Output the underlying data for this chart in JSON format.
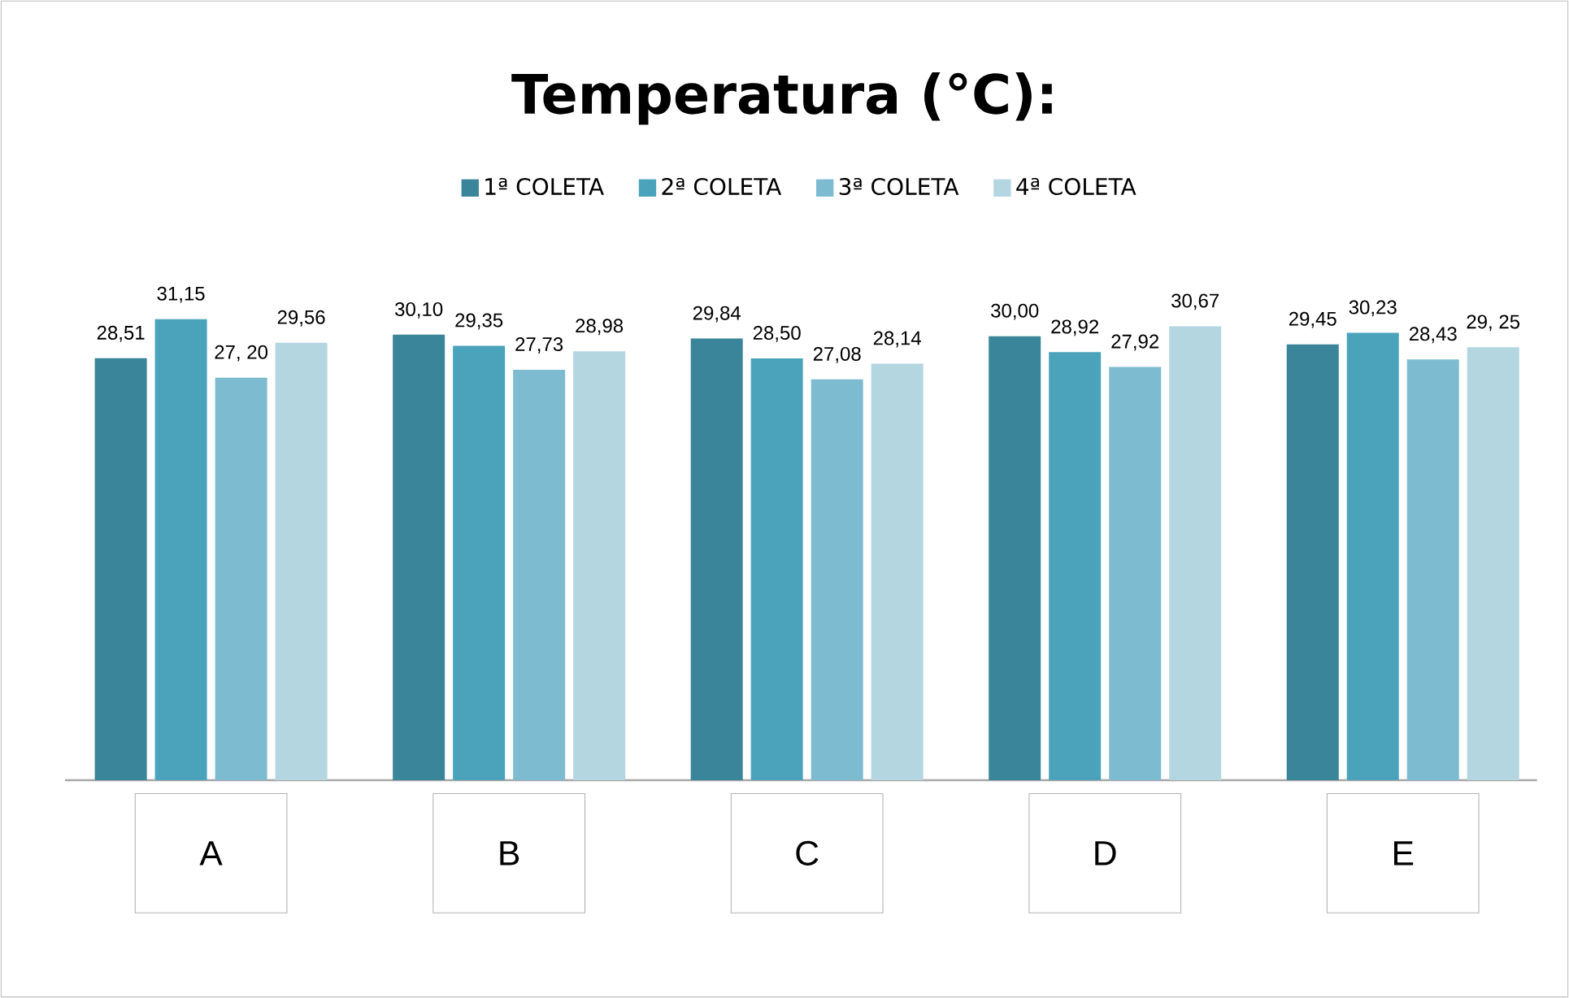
{
  "chart_data": {
    "type": "bar",
    "title": "Temperatura (°C):",
    "categories": [
      "A",
      "B",
      "C",
      "D",
      "E"
    ],
    "series": [
      {
        "name": "1ª COLETA",
        "color": "#3a8599",
        "values": [
          28.51,
          30.1,
          29.84,
          30.0,
          29.45
        ],
        "value_labels": [
          "28,51",
          "30,10",
          "29,84",
          "30,00",
          "29,45"
        ]
      },
      {
        "name": "2ª COLETA",
        "color": "#4aa3bb",
        "values": [
          31.15,
          29.35,
          28.5,
          28.92,
          30.23
        ],
        "value_labels": [
          "31,15",
          "29,35",
          "28,50",
          "28,92",
          "30,23"
        ]
      },
      {
        "name": "3ª COLETA",
        "color": "#7dbcd0",
        "values": [
          27.2,
          27.73,
          27.08,
          27.92,
          28.43
        ],
        "value_labels": [
          "27, 20",
          "27,73",
          "27,08",
          "27,92",
          "28,43"
        ]
      },
      {
        "name": "4ª COLETA",
        "color": "#b3d6e1",
        "values": [
          29.56,
          28.98,
          28.14,
          30.67,
          29.25
        ],
        "value_labels": [
          "29,56",
          "28,98",
          "28,14",
          "30,67",
          "29, 25"
        ]
      }
    ],
    "tick_labels": "x",
    "legend": "top"
  }
}
